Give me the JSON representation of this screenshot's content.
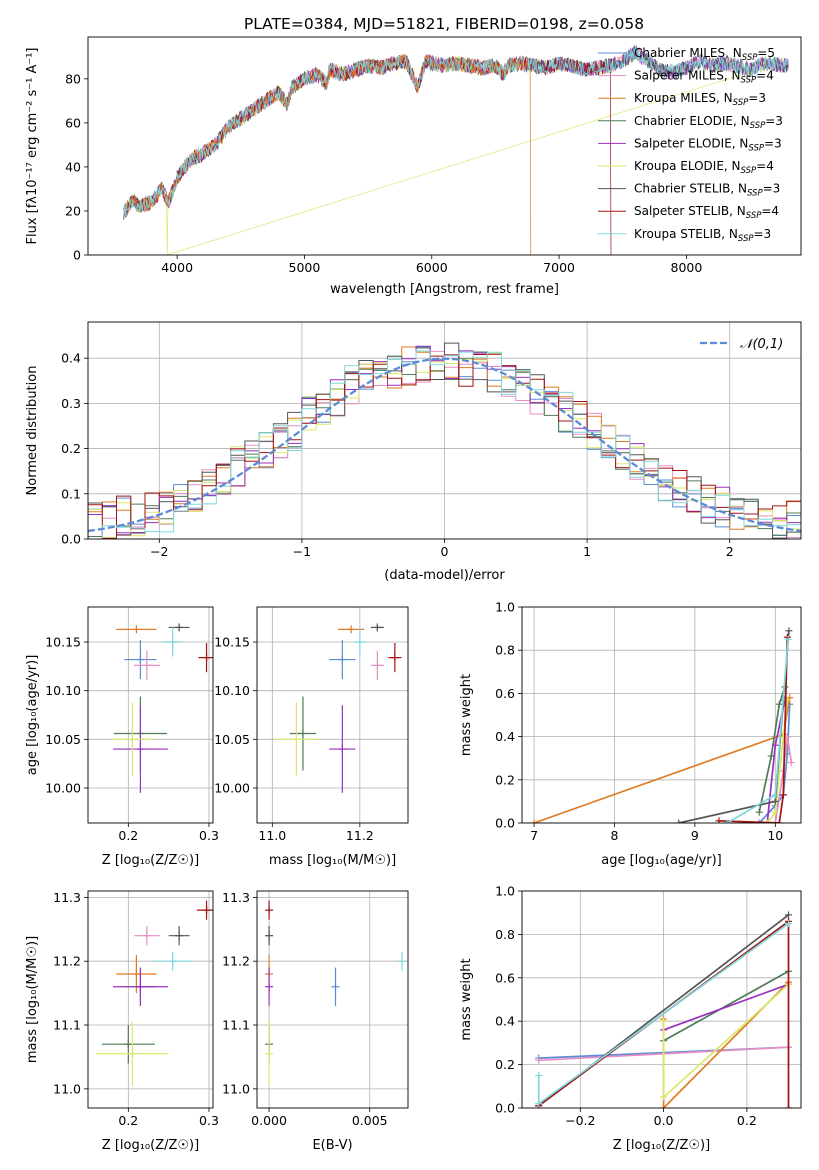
{
  "figure": {
    "title": "PLATE=0384, MJD=51821, FIBERID=0198, z=0.058"
  },
  "colors": {
    "Chabrier MILES": "#5b8bd6",
    "Salpeter MILES": "#e68fc4",
    "Kroupa MILES": "#e07b25",
    "Chabrier ELODIE": "#4f7c55",
    "Salpeter ELODIE": "#9b2fbf",
    "Kroupa ELODIE": "#d9e86a",
    "Chabrier STELIB": "#555555",
    "Salpeter STELIB": "#a31212",
    "Kroupa STELIB": "#7fd8dc",
    "normal_curve": "#5b8bd6",
    "grid": "#b0b0b0"
  },
  "chart_data": [
    {
      "id": "spectrum",
      "type": "line",
      "title": "PLATE=0384, MJD=51821, FIBERID=0198, z=0.058",
      "xlabel": "wavelength [Angstrom, rest frame]",
      "ylabel": "Flux [fλ10⁻¹⁷ erg cm⁻² s⁻¹ A⁻¹]",
      "xlim": [
        3300,
        8900
      ],
      "ylim": [
        0,
        99
      ],
      "xticks": [
        4000,
        5000,
        6000,
        7000,
        8000
      ],
      "yticks": [
        0,
        20,
        40,
        60,
        80
      ],
      "grid": false,
      "legend_position": "top-right",
      "legend": [
        "Chabrier MILES, N_SSP=5",
        "Salpeter MILES, N_SSP=4",
        "Kroupa MILES, N_SSP=3",
        "Chabrier ELODIE, N_SSP=3",
        "Salpeter ELODIE, N_SSP=3",
        "Kroupa ELODIE, N_SSP=4",
        "Chabrier STELIB, N_SSP=3",
        "Salpeter STELIB, N_SSP=4",
        "Kroupa STELIB, N_SSP=3"
      ],
      "legend_labels": [
        [
          "Chabrier MILES, N",
          "SSP",
          "=5"
        ],
        [
          "Salpeter MILES, N",
          "SSP",
          "=4"
        ],
        [
          "Kroupa MILES, N",
          "SSP",
          "=3"
        ],
        [
          "Chabrier ELODIE, N",
          "SSP",
          "=3"
        ],
        [
          "Salpeter ELODIE, N",
          "SSP",
          "=3"
        ],
        [
          "Kroupa ELODIE, N",
          "SSP",
          "=4"
        ],
        [
          "Chabrier STELIB, N",
          "SSP",
          "=3"
        ],
        [
          "Salpeter STELIB, N",
          "SSP",
          "=4"
        ],
        [
          "Kroupa STELIB, N",
          "SSP",
          "=3"
        ]
      ],
      "flux_envelope": {
        "x": [
          3580,
          3650,
          3700,
          3800,
          3880,
          3930,
          3960,
          4000,
          4100,
          4200,
          4300,
          4400,
          4500,
          4600,
          4700,
          4800,
          4860,
          4900,
          5000,
          5100,
          5170,
          5200,
          5300,
          5400,
          5500,
          5600,
          5700,
          5800,
          5890,
          5950,
          6000,
          6100,
          6200,
          6300,
          6400,
          6500,
          6563,
          6600,
          6700,
          6800,
          6900,
          7000,
          7100,
          7200,
          7300,
          7400,
          7500,
          7600,
          7700,
          7800,
          7900,
          8000,
          8100,
          8200,
          8300,
          8400,
          8500,
          8600,
          8800
        ],
        "y": [
          19,
          25,
          22,
          24,
          30,
          24,
          28,
          35,
          43,
          46,
          50,
          58,
          62,
          66,
          70,
          74,
          68,
          76,
          80,
          82,
          78,
          84,
          82,
          84,
          86,
          85,
          87,
          88,
          76,
          88,
          87,
          86,
          87,
          86,
          85,
          86,
          82,
          86,
          87,
          86,
          85,
          87,
          86,
          84,
          85,
          86,
          88,
          92,
          88,
          84,
          83,
          85,
          88,
          86,
          87,
          86,
          84,
          87,
          86
        ]
      },
      "dropouts": [
        {
          "series": "Kroupa ELODIE",
          "x": 3920
        },
        {
          "series": "Kroupa MILES",
          "x": 6780
        },
        {
          "series": "Salpeter STELIB",
          "x": 7410
        }
      ]
    },
    {
      "id": "residuals",
      "type": "histogram",
      "xlabel": "(data-model)/error",
      "ylabel": "Normed distribution",
      "xlim": [
        -2.5,
        2.5
      ],
      "ylim": [
        0,
        0.48
      ],
      "xticks": [
        -2,
        -1,
        0,
        1,
        2
      ],
      "yticks": [
        0.0,
        0.1,
        0.2,
        0.3,
        0.4
      ],
      "grid": true,
      "legend_position": "top-right",
      "legend": [
        "𝒩(0,1)"
      ],
      "reference_curve": "normal(0,1)",
      "bin_edges": [
        -2.5,
        -2.4,
        -2.3,
        -2.2,
        -2.1,
        -2.0,
        -1.9,
        -1.8,
        -1.7,
        -1.6,
        -1.5,
        -1.4,
        -1.3,
        -1.2,
        -1.1,
        -1.0,
        -0.9,
        -0.8,
        -0.7,
        -0.6,
        -0.5,
        -0.4,
        -0.3,
        -0.2,
        -0.1,
        0.0,
        0.1,
        0.2,
        0.3,
        0.4,
        0.5,
        0.6,
        0.7,
        0.8,
        0.9,
        1.0,
        1.1,
        1.2,
        1.3,
        1.4,
        1.5,
        1.6,
        1.7,
        1.8,
        1.9,
        2.0,
        2.1,
        2.2,
        2.3,
        2.4,
        2.5
      ],
      "base_density": [
        0.04,
        0.04,
        0.05,
        0.05,
        0.06,
        0.06,
        0.08,
        0.1,
        0.12,
        0.14,
        0.16,
        0.18,
        0.2,
        0.22,
        0.24,
        0.27,
        0.29,
        0.31,
        0.34,
        0.35,
        0.36,
        0.37,
        0.38,
        0.39,
        0.39,
        0.39,
        0.38,
        0.38,
        0.37,
        0.36,
        0.34,
        0.32,
        0.3,
        0.28,
        0.26,
        0.24,
        0.21,
        0.19,
        0.17,
        0.15,
        0.12,
        0.11,
        0.1,
        0.08,
        0.07,
        0.06,
        0.05,
        0.05,
        0.04,
        0.04
      ]
    },
    {
      "id": "age_vs_Z",
      "type": "errorbar",
      "xlabel": "Z [log₁₀(Z/Z☉)]",
      "ylabel": "age  [log₁₀(age/yr)]",
      "xlim": [
        0.15,
        0.305
      ],
      "ylim": [
        9.964,
        10.186
      ],
      "xticks": [
        0.2,
        0.3
      ],
      "yticks": [
        10.0,
        10.05,
        10.1,
        10.15
      ],
      "grid": true,
      "points": [
        {
          "series": "Chabrier MILES",
          "x": 0.215,
          "y": 10.132,
          "xerr": 0.02,
          "yerr": 0.02
        },
        {
          "series": "Salpeter MILES",
          "x": 0.223,
          "y": 10.126,
          "xerr": 0.016,
          "yerr": 0.015
        },
        {
          "series": "Kroupa MILES",
          "x": 0.21,
          "y": 10.163,
          "xerr": 0.025,
          "yerr": 0.0
        },
        {
          "series": "Chabrier ELODIE",
          "x": 0.215,
          "y": 10.056,
          "xerr": 0.033,
          "yerr": 0.038
        },
        {
          "series": "Salpeter ELODIE",
          "x": 0.215,
          "y": 10.04,
          "xerr": 0.034,
          "yerr": 0.045
        },
        {
          "series": "Kroupa ELODIE",
          "x": 0.205,
          "y": 10.05,
          "xerr": 0.025,
          "yerr": 0.038
        },
        {
          "series": "Chabrier STELIB",
          "x": 0.263,
          "y": 10.165,
          "xerr": 0.013,
          "yerr": 0.002
        },
        {
          "series": "Salpeter STELIB",
          "x": 0.297,
          "y": 10.134,
          "xerr": 0.01,
          "yerr": 0.015
        },
        {
          "series": "Kroupa STELIB",
          "x": 0.255,
          "y": 10.15,
          "xerr": 0.012,
          "yerr": 0.015
        }
      ]
    },
    {
      "id": "age_vs_mass",
      "type": "errorbar",
      "xlabel": "mass [log₁₀(M/M☉)]",
      "ylabel": "",
      "xlim": [
        10.965,
        11.31
      ],
      "ylim": [
        9.964,
        10.186
      ],
      "xticks": [
        11.0,
        11.2
      ],
      "yticks": [
        10.0,
        10.05,
        10.1,
        10.15
      ],
      "grid": true,
      "points": [
        {
          "series": "Chabrier MILES",
          "x": 11.16,
          "y": 10.132,
          "xerr": 0.03,
          "yerr": 0.02
        },
        {
          "series": "Salpeter MILES",
          "x": 11.24,
          "y": 10.126,
          "xerr": 0.015,
          "yerr": 0.015
        },
        {
          "series": "Kroupa MILES",
          "x": 11.18,
          "y": 10.163,
          "xerr": 0.03,
          "yerr": 0.0
        },
        {
          "series": "Chabrier ELODIE",
          "x": 11.07,
          "y": 10.056,
          "xerr": 0.03,
          "yerr": 0.038
        },
        {
          "series": "Salpeter ELODIE",
          "x": 11.16,
          "y": 10.04,
          "xerr": 0.03,
          "yerr": 0.045
        },
        {
          "series": "Kroupa ELODIE",
          "x": 11.055,
          "y": 10.05,
          "xerr": 0.05,
          "yerr": 0.038
        },
        {
          "series": "Chabrier STELIB",
          "x": 11.24,
          "y": 10.165,
          "xerr": 0.015,
          "yerr": 0.002
        },
        {
          "series": "Salpeter STELIB",
          "x": 11.28,
          "y": 10.134,
          "xerr": 0.015,
          "yerr": 0.015
        },
        {
          "series": "Kroupa STELIB",
          "x": 11.2,
          "y": 10.15,
          "xerr": 0.015,
          "yerr": 0.015
        }
      ]
    },
    {
      "id": "weight_vs_age",
      "type": "line",
      "xlabel": "age  [log₁₀(age/yr)]",
      "ylabel": "mass weight",
      "xlim": [
        6.85,
        10.32
      ],
      "ylim": [
        0,
        1
      ],
      "xticks": [
        7,
        8,
        9,
        10
      ],
      "yticks": [
        0.0,
        0.2,
        0.4,
        0.6,
        0.8,
        1.0
      ],
      "grid": true,
      "series": [
        {
          "series": "Chabrier MILES",
          "x": [
            9.8,
            10.0,
            10.1,
            10.15,
            10.18
          ],
          "y": [
            0.0,
            0.08,
            0.13,
            0.32,
            0.55
          ]
        },
        {
          "series": "Salpeter MILES",
          "x": [
            10.0,
            10.1,
            10.15,
            10.2
          ],
          "y": [
            0.0,
            0.24,
            0.4,
            0.28
          ]
        },
        {
          "series": "Kroupa MILES",
          "x": [
            7.0,
            10.1,
            10.18
          ],
          "y": [
            0.0,
            0.41,
            0.58
          ]
        },
        {
          "series": "Chabrier ELODIE",
          "x": [
            9.8,
            9.95,
            10.05,
            10.12
          ],
          "y": [
            0.05,
            0.31,
            0.55,
            0.63
          ]
        },
        {
          "series": "Salpeter ELODIE",
          "x": [
            9.9,
            10.0,
            10.12
          ],
          "y": [
            0.0,
            0.36,
            0.57
          ]
        },
        {
          "series": "Kroupa ELODIE",
          "x": [
            9.9,
            10.0,
            10.1,
            10.15
          ],
          "y": [
            0.0,
            0.05,
            0.4,
            0.57
          ]
        },
        {
          "series": "Chabrier STELIB",
          "x": [
            8.8,
            10.0,
            10.17
          ],
          "y": [
            0.0,
            0.1,
            0.89
          ]
        },
        {
          "series": "Salpeter STELIB",
          "x": [
            9.3,
            10.05,
            10.1,
            10.15
          ],
          "y": [
            0.01,
            0.0,
            0.13,
            0.86
          ]
        },
        {
          "series": "Kroupa STELIB",
          "x": [
            9.4,
            10.0,
            10.16
          ],
          "y": [
            0.0,
            0.13,
            0.85
          ]
        }
      ]
    },
    {
      "id": "mass_vs_Z",
      "type": "errorbar",
      "xlabel": "Z [log₁₀(Z/Z☉)]",
      "ylabel": "mass [log₁₀(M/M☉)]",
      "xlim": [
        0.15,
        0.305
      ],
      "ylim": [
        10.97,
        11.31
      ],
      "xticks": [
        0.2,
        0.3
      ],
      "yticks": [
        11.0,
        11.1,
        11.2,
        11.3
      ],
      "grid": true,
      "points": [
        {
          "series": "Chabrier MILES",
          "x": 0.215,
          "y": 11.16,
          "xerr": 0.02,
          "yerr": 0.03
        },
        {
          "series": "Salpeter MILES",
          "x": 0.223,
          "y": 11.24,
          "xerr": 0.016,
          "yerr": 0.015
        },
        {
          "series": "Kroupa MILES",
          "x": 0.21,
          "y": 11.18,
          "xerr": 0.025,
          "yerr": 0.03
        },
        {
          "series": "Chabrier ELODIE",
          "x": 0.2,
          "y": 11.07,
          "xerr": 0.033,
          "yerr": 0.03
        },
        {
          "series": "Salpeter ELODIE",
          "x": 0.215,
          "y": 11.16,
          "xerr": 0.034,
          "yerr": 0.03
        },
        {
          "series": "Kroupa ELODIE",
          "x": 0.205,
          "y": 11.055,
          "xerr": 0.045,
          "yerr": 0.05
        },
        {
          "series": "Chabrier STELIB",
          "x": 0.263,
          "y": 11.24,
          "xerr": 0.013,
          "yerr": 0.015
        },
        {
          "series": "Salpeter STELIB",
          "x": 0.297,
          "y": 11.28,
          "xerr": 0.012,
          "yerr": 0.015
        },
        {
          "series": "Kroupa STELIB",
          "x": 0.255,
          "y": 11.2,
          "xerr": 0.025,
          "yerr": 0.015
        }
      ]
    },
    {
      "id": "mass_vs_ebv",
      "type": "errorbar",
      "xlabel": "E(B-V)",
      "ylabel": "",
      "xlim": [
        -0.0006,
        0.0069
      ],
      "ylim": [
        10.97,
        11.31
      ],
      "xticks": [
        0.0,
        0.005
      ],
      "xtick_labels": [
        "0.000",
        "0.005"
      ],
      "yticks": [
        11.0,
        11.1,
        11.2,
        11.3
      ],
      "grid": true,
      "points": [
        {
          "series": "Chabrier MILES",
          "x": 0.0033,
          "y": 11.16,
          "xerr": 0.0,
          "yerr": 0.03
        },
        {
          "series": "Salpeter MILES",
          "x": 0.0,
          "y": 11.24,
          "xerr": 0.0,
          "yerr": 0.015
        },
        {
          "series": "Kroupa MILES",
          "x": 0.0,
          "y": 11.18,
          "xerr": 0.0,
          "yerr": 0.03
        },
        {
          "series": "Chabrier ELODIE",
          "x": 0.0,
          "y": 11.07,
          "xerr": 0.0,
          "yerr": 0.03
        },
        {
          "series": "Salpeter ELODIE",
          "x": 0.0,
          "y": 11.16,
          "xerr": 0.0,
          "yerr": 0.03
        },
        {
          "series": "Kroupa ELODIE",
          "x": 0.0,
          "y": 11.055,
          "xerr": 0.0,
          "yerr": 0.05
        },
        {
          "series": "Chabrier STELIB",
          "x": 0.0,
          "y": 11.24,
          "xerr": 0.0,
          "yerr": 0.015
        },
        {
          "series": "Salpeter STELIB",
          "x": 0.0,
          "y": 11.28,
          "xerr": 0.0,
          "yerr": 0.015
        },
        {
          "series": "Kroupa STELIB",
          "x": 0.0066,
          "y": 11.2,
          "xerr": 0.0,
          "yerr": 0.015
        }
      ]
    },
    {
      "id": "weight_vs_Z",
      "type": "line",
      "xlabel": "Z [log₁₀(Z/Z☉)]",
      "ylabel": "mass weight",
      "xlim": [
        -0.34,
        0.33
      ],
      "ylim": [
        0,
        1
      ],
      "xticks": [
        -0.2,
        0.0,
        0.2
      ],
      "xtick_labels": [
        "−0.2",
        "0.0",
        "0.2"
      ],
      "yticks": [
        0.0,
        0.2,
        0.4,
        0.6,
        0.8,
        1.0
      ],
      "grid": true,
      "series": [
        {
          "series": "Chabrier MILES",
          "x": [
            -0.3,
            0.3
          ],
          "y": [
            0.23,
            0.28
          ]
        },
        {
          "series": "Salpeter MILES",
          "x": [
            -0.3,
            0.3
          ],
          "y": [
            0.22,
            0.28
          ]
        },
        {
          "series": "Kroupa MILES",
          "x": [
            0.0,
            0.0,
            0.3
          ],
          "y": [
            0.41,
            0.0,
            0.58
          ]
        },
        {
          "series": "Chabrier ELODIE",
          "x": [
            0.0,
            0.3
          ],
          "y": [
            0.31,
            0.63
          ]
        },
        {
          "series": "Salpeter ELODIE",
          "x": [
            0.0,
            0.3
          ],
          "y": [
            0.36,
            0.57
          ]
        },
        {
          "series": "Kroupa ELODIE",
          "x": [
            0.0,
            0.0,
            0.3
          ],
          "y": [
            0.4,
            0.05,
            0.57
          ]
        },
        {
          "series": "Chabrier STELIB",
          "x": [
            -0.3,
            0.3
          ],
          "y": [
            0.01,
            0.89
          ]
        },
        {
          "series": "Salpeter STELIB",
          "x": [
            -0.3,
            0.3,
            0.3
          ],
          "y": [
            0.01,
            0.86,
            0.0
          ]
        },
        {
          "series": "Kroupa STELIB",
          "x": [
            -0.3,
            -0.3,
            0.3
          ],
          "y": [
            0.15,
            0.02,
            0.85
          ]
        }
      ]
    }
  ]
}
